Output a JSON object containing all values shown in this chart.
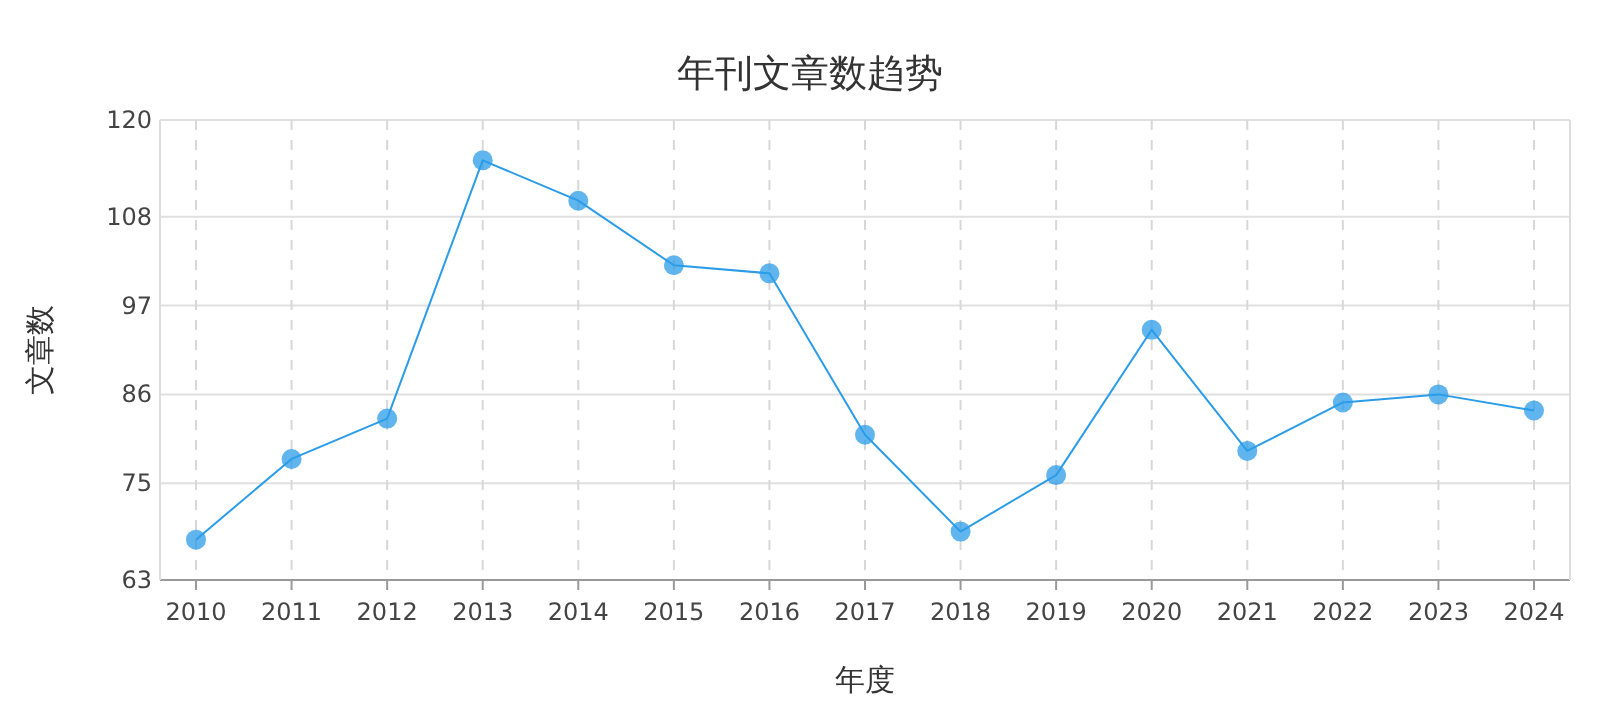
{
  "chart_data": {
    "type": "line",
    "title": "年刊文章数趋势",
    "xlabel": "年度",
    "ylabel": "文章数",
    "categories": [
      "2010",
      "2011",
      "2012",
      "2013",
      "2014",
      "2015",
      "2016",
      "2017",
      "2018",
      "2019",
      "2020",
      "2021",
      "2022",
      "2023",
      "2024"
    ],
    "series": [
      {
        "color": "#2b9ce8",
        "values": [
          68,
          78,
          83,
          115,
          110,
          102,
          101,
          81,
          69,
          76,
          94,
          79,
          85,
          86,
          84
        ]
      }
    ],
    "ylim": [
      63,
      120
    ],
    "yticks": [
      63,
      75,
      86,
      97,
      108,
      120
    ],
    "grid": true,
    "marker": "circle",
    "line_style": "solid"
  }
}
